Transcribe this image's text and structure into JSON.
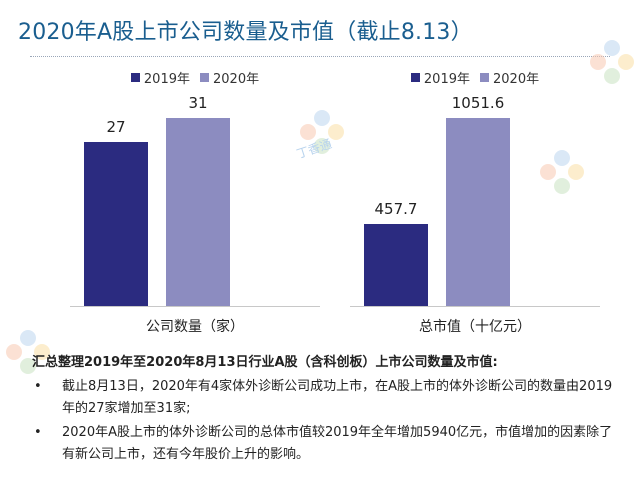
{
  "title": "2020年A股上市公司数量及市值（截止8.13）",
  "watermark_text": "丁香通",
  "colors": {
    "series_2019": "#2b2b80",
    "series_2020": "#8c8cc0",
    "title": "#1a5e8f"
  },
  "chart_data": [
    {
      "type": "bar",
      "categories": [
        "公司数量（家）"
      ],
      "series": [
        {
          "name": "2019年",
          "values": [
            27
          ]
        },
        {
          "name": "2020年",
          "values": [
            31
          ]
        }
      ],
      "ylim": [
        0,
        33
      ],
      "legend": "top"
    },
    {
      "type": "bar",
      "categories": [
        "总市值（十亿元）"
      ],
      "series": [
        {
          "name": "2019年",
          "values": [
            457.7
          ]
        },
        {
          "name": "2020年",
          "values": [
            1051.6
          ]
        }
      ],
      "ylim": [
        0,
        1120
      ],
      "legend": "top"
    }
  ],
  "summary": {
    "heading": "汇总整理2019年至2020年8月13日行业A股（含科创板）上市公司数量及市值:",
    "bullet_symbol": "•",
    "bullets": [
      "截止8月13日，2020年有4家体外诊断公司成功上市，在A股上市的体外诊断公司的数量由2019年的27家增加至31家;",
      "2020年A股上市的体外诊断公司的总体市值较2019年全年增加5940亿元，市值增加的因素除了有新公司上市，还有今年股价上升的影响。"
    ]
  }
}
